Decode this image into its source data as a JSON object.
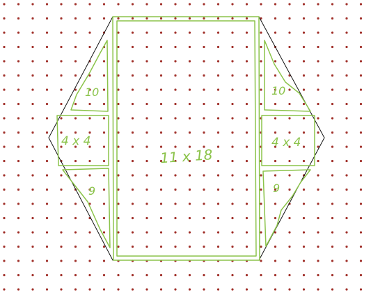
{
  "diagram": {
    "colors": {
      "background": "#ffffff",
      "grid_dot": "#a0302a",
      "outline": "#111111",
      "sketch": "#8bc34a"
    },
    "labels": {
      "center": "11 x 18",
      "left_top": "10",
      "left_middle": "4 x 4",
      "left_bottom": "9",
      "right_top": "10",
      "right_middle": "4 x 4",
      "right_bottom": "9"
    }
  }
}
